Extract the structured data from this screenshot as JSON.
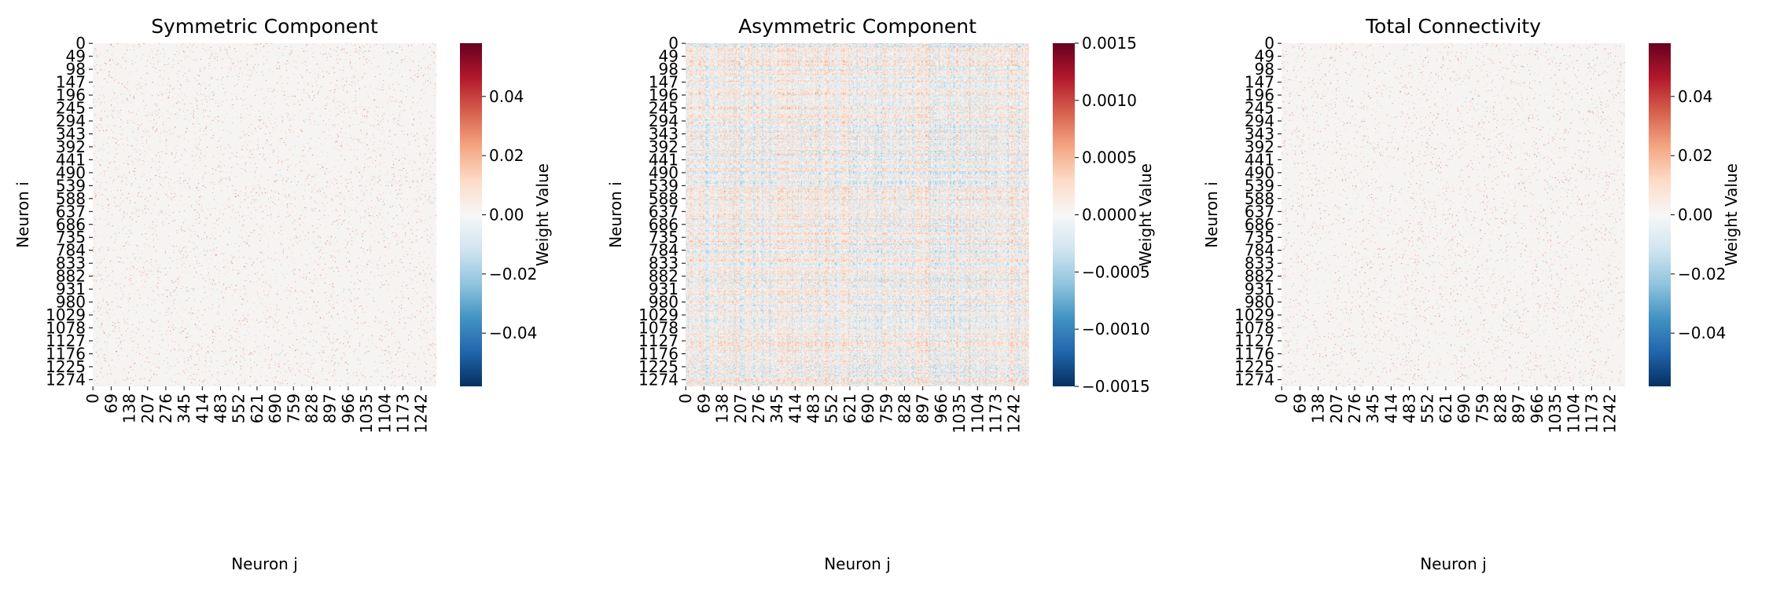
{
  "chart_data": [
    {
      "type": "heatmap",
      "title": "Symmetric Component",
      "xlabel": "Neuron j",
      "ylabel": "Neuron i",
      "matrix_size": [
        1300,
        1300
      ],
      "xticks": [
        "0",
        "69",
        "138",
        "207",
        "276",
        "345",
        "414",
        "483",
        "552",
        "621",
        "690",
        "759",
        "828",
        "897",
        "966",
        "1035",
        "1104",
        "1173",
        "1242"
      ],
      "yticks": [
        "0",
        "49",
        "98",
        "147",
        "196",
        "245",
        "294",
        "343",
        "392",
        "441",
        "490",
        "539",
        "588",
        "637",
        "686",
        "735",
        "784",
        "833",
        "882",
        "931",
        "980",
        "1029",
        "1078",
        "1127",
        "1176",
        "1225",
        "1274"
      ],
      "colorbar": {
        "label": "Weight Value",
        "colormap": "RdBu_r",
        "vmin": -0.058,
        "vmax": 0.058,
        "ticks": [
          -0.04,
          -0.02,
          0.0,
          0.02,
          0.04
        ],
        "tick_labels": [
          "−0.04",
          "−0.02",
          "0.00",
          "0.02",
          "0.04"
        ]
      },
      "texture": "sparse"
    },
    {
      "type": "heatmap",
      "title": "Asymmetric Component",
      "xlabel": "Neuron j",
      "ylabel": "Neuron i",
      "matrix_size": [
        1300,
        1300
      ],
      "xticks": [
        "0",
        "69",
        "138",
        "207",
        "276",
        "345",
        "414",
        "483",
        "552",
        "621",
        "690",
        "759",
        "828",
        "897",
        "966",
        "1035",
        "1104",
        "1173",
        "1242"
      ],
      "yticks": [
        "0",
        "49",
        "98",
        "147",
        "196",
        "245",
        "294",
        "343",
        "392",
        "441",
        "490",
        "539",
        "588",
        "637",
        "686",
        "735",
        "784",
        "833",
        "882",
        "931",
        "980",
        "1029",
        "1078",
        "1127",
        "1176",
        "1225",
        "1274"
      ],
      "colorbar": {
        "label": "Weight Value",
        "colormap": "RdBu_r",
        "vmin": -0.0015,
        "vmax": 0.0015,
        "ticks": [
          -0.0015,
          -0.001,
          -0.0005,
          0.0,
          0.0005,
          0.001,
          0.0015
        ],
        "tick_labels": [
          "−0.0015",
          "−0.0010",
          "−0.0005",
          "0.0000",
          "0.0005",
          "0.0010",
          "0.0015"
        ]
      },
      "texture": "dense"
    },
    {
      "type": "heatmap",
      "title": "Total Connectivity",
      "xlabel": "Neuron j",
      "ylabel": "Neuron i",
      "matrix_size": [
        1300,
        1300
      ],
      "xticks": [
        "0",
        "69",
        "138",
        "207",
        "276",
        "345",
        "414",
        "483",
        "552",
        "621",
        "690",
        "759",
        "828",
        "897",
        "966",
        "1035",
        "1104",
        "1173",
        "1242"
      ],
      "yticks": [
        "0",
        "49",
        "98",
        "147",
        "196",
        "245",
        "294",
        "343",
        "392",
        "441",
        "490",
        "539",
        "588",
        "637",
        "686",
        "735",
        "784",
        "833",
        "882",
        "931",
        "980",
        "1029",
        "1078",
        "1127",
        "1176",
        "1225",
        "1274"
      ],
      "colorbar": {
        "label": "Weight Value",
        "colormap": "RdBu_r",
        "vmin": -0.058,
        "vmax": 0.058,
        "ticks": [
          -0.04,
          -0.02,
          0.0,
          0.02,
          0.04
        ],
        "tick_labels": [
          "−0.04",
          "−0.02",
          "0.00",
          "0.02",
          "0.04"
        ]
      },
      "texture": "sparse"
    }
  ]
}
